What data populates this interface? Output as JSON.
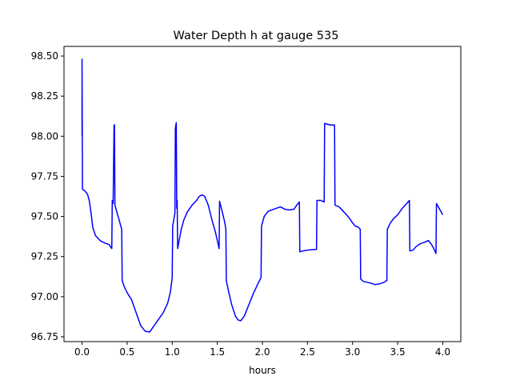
{
  "chart_data": {
    "type": "line",
    "title": "Water Depth h at gauge 535",
    "xlabel": "hours",
    "ylabel": "",
    "xlim": [
      -0.2,
      4.2
    ],
    "ylim": [
      96.72,
      98.56
    ],
    "grid": false,
    "x_ticks": [
      0.0,
      0.5,
      1.0,
      1.5,
      2.0,
      2.5,
      3.0,
      3.5,
      4.0
    ],
    "x_tick_labels": [
      "0.0",
      "0.5",
      "1.0",
      "1.5",
      "2.0",
      "2.5",
      "3.0",
      "3.5",
      "4.0"
    ],
    "y_ticks": [
      96.75,
      97.0,
      97.25,
      97.5,
      97.75,
      98.0,
      98.25,
      98.5
    ],
    "y_tick_labels": [
      "96.75",
      "97.00",
      "97.25",
      "97.50",
      "97.75",
      "98.00",
      "98.25",
      "98.50"
    ],
    "series": [
      {
        "color": "#0000ff",
        "points": [
          [
            0.0,
            98.0
          ],
          [
            0.0,
            98.48
          ],
          [
            0.005,
            97.67
          ],
          [
            0.03,
            97.66
          ],
          [
            0.06,
            97.64
          ],
          [
            0.08,
            97.6
          ],
          [
            0.1,
            97.52
          ],
          [
            0.12,
            97.43
          ],
          [
            0.15,
            97.38
          ],
          [
            0.2,
            97.35
          ],
          [
            0.25,
            97.335
          ],
          [
            0.3,
            97.325
          ],
          [
            0.33,
            97.3
          ],
          [
            0.335,
            97.6
          ],
          [
            0.345,
            97.58
          ],
          [
            0.355,
            98.07
          ],
          [
            0.36,
            98.07
          ],
          [
            0.365,
            97.57
          ],
          [
            0.39,
            97.52
          ],
          [
            0.42,
            97.46
          ],
          [
            0.44,
            97.42
          ],
          [
            0.445,
            97.1
          ],
          [
            0.47,
            97.06
          ],
          [
            0.5,
            97.025
          ],
          [
            0.55,
            96.98
          ],
          [
            0.6,
            96.9
          ],
          [
            0.65,
            96.82
          ],
          [
            0.7,
            96.785
          ],
          [
            0.75,
            96.78
          ],
          [
            0.8,
            96.82
          ],
          [
            0.85,
            96.86
          ],
          [
            0.9,
            96.9
          ],
          [
            0.95,
            96.96
          ],
          [
            0.98,
            97.03
          ],
          [
            1.0,
            97.12
          ],
          [
            1.005,
            97.44
          ],
          [
            1.03,
            97.52
          ],
          [
            1.035,
            98.05
          ],
          [
            1.045,
            98.085
          ],
          [
            1.05,
            97.55
          ],
          [
            1.055,
            97.6
          ],
          [
            1.06,
            97.3
          ],
          [
            1.08,
            97.36
          ],
          [
            1.1,
            97.42
          ],
          [
            1.13,
            97.48
          ],
          [
            1.17,
            97.53
          ],
          [
            1.22,
            97.57
          ],
          [
            1.27,
            97.6
          ],
          [
            1.3,
            97.625
          ],
          [
            1.33,
            97.635
          ],
          [
            1.36,
            97.625
          ],
          [
            1.4,
            97.57
          ],
          [
            1.44,
            97.48
          ],
          [
            1.48,
            97.4
          ],
          [
            1.52,
            97.3
          ],
          [
            1.525,
            97.595
          ],
          [
            1.55,
            97.54
          ],
          [
            1.58,
            97.47
          ],
          [
            1.595,
            97.42
          ],
          [
            1.6,
            97.1
          ],
          [
            1.63,
            97.02
          ],
          [
            1.66,
            96.95
          ],
          [
            1.7,
            96.88
          ],
          [
            1.73,
            96.855
          ],
          [
            1.76,
            96.85
          ],
          [
            1.8,
            96.88
          ],
          [
            1.85,
            96.95
          ],
          [
            1.9,
            97.02
          ],
          [
            1.95,
            97.08
          ],
          [
            1.985,
            97.12
          ],
          [
            1.99,
            97.44
          ],
          [
            2.02,
            97.5
          ],
          [
            2.06,
            97.53
          ],
          [
            2.1,
            97.54
          ],
          [
            2.15,
            97.55
          ],
          [
            2.2,
            97.56
          ],
          [
            2.25,
            97.545
          ],
          [
            2.3,
            97.54
          ],
          [
            2.35,
            97.545
          ],
          [
            2.38,
            97.57
          ],
          [
            2.41,
            97.59
          ],
          [
            2.415,
            97.28
          ],
          [
            2.45,
            97.285
          ],
          [
            2.5,
            97.29
          ],
          [
            2.55,
            97.293
          ],
          [
            2.6,
            97.295
          ],
          [
            2.605,
            97.6
          ],
          [
            2.65,
            97.6
          ],
          [
            2.685,
            97.59
          ],
          [
            2.69,
            98.08
          ],
          [
            2.75,
            98.07
          ],
          [
            2.8,
            98.07
          ],
          [
            2.805,
            97.57
          ],
          [
            2.85,
            97.56
          ],
          [
            2.9,
            97.53
          ],
          [
            2.95,
            97.5
          ],
          [
            3.0,
            97.46
          ],
          [
            3.03,
            97.44
          ],
          [
            3.06,
            97.435
          ],
          [
            3.085,
            97.42
          ],
          [
            3.09,
            97.11
          ],
          [
            3.12,
            97.095
          ],
          [
            3.16,
            97.09
          ],
          [
            3.2,
            97.085
          ],
          [
            3.25,
            97.075
          ],
          [
            3.3,
            97.08
          ],
          [
            3.35,
            97.09
          ],
          [
            3.375,
            97.1
          ],
          [
            3.38,
            97.1
          ],
          [
            3.385,
            97.42
          ],
          [
            3.42,
            97.46
          ],
          [
            3.46,
            97.49
          ],
          [
            3.5,
            97.51
          ],
          [
            3.55,
            97.55
          ],
          [
            3.6,
            97.58
          ],
          [
            3.63,
            97.6
          ],
          [
            3.635,
            97.285
          ],
          [
            3.67,
            97.29
          ],
          [
            3.7,
            97.31
          ],
          [
            3.75,
            97.33
          ],
          [
            3.8,
            97.34
          ],
          [
            3.84,
            97.35
          ],
          [
            3.87,
            97.33
          ],
          [
            3.9,
            97.3
          ],
          [
            3.925,
            97.27
          ],
          [
            3.93,
            97.58
          ],
          [
            3.96,
            97.55
          ],
          [
            4.0,
            97.51
          ]
        ]
      }
    ]
  }
}
